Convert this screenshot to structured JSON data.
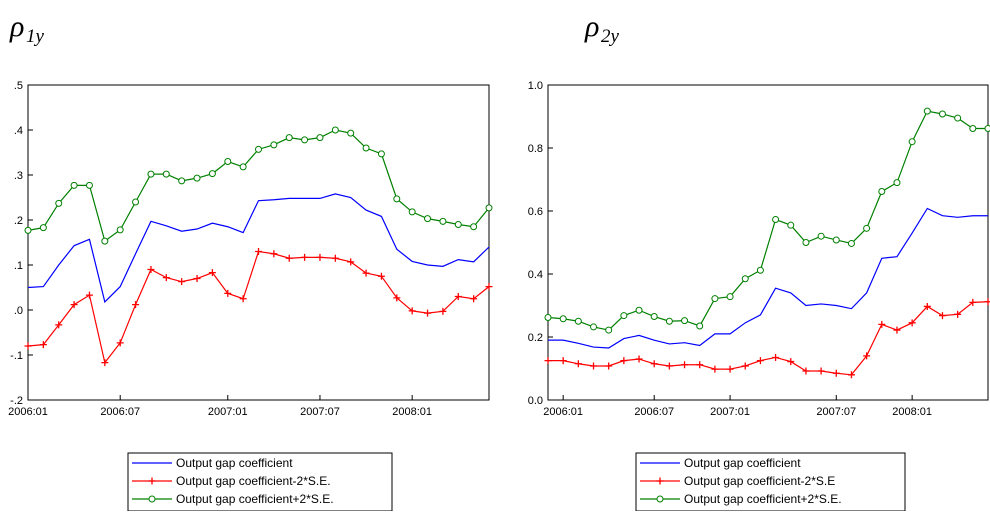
{
  "chart_data": [
    {
      "type": "line",
      "title": "ρ",
      "title_subscript": "1y",
      "categories": [
        "2006:01",
        null,
        null,
        null,
        null,
        null,
        "2006:07",
        null,
        null,
        null,
        null,
        null,
        null,
        "2007:01",
        null,
        null,
        null,
        null,
        null,
        "2007:07",
        null,
        null,
        null,
        null,
        null,
        "2008:01",
        null,
        null,
        null,
        null,
        null
      ],
      "ylim": [
        -0.2,
        0.5
      ],
      "yticks": [
        {
          "value": -0.2,
          "label": "-.2"
        },
        {
          "value": -0.1,
          "label": "-.1"
        },
        {
          "value": 0,
          "label": ".0"
        },
        {
          "value": 0.1,
          "label": ".1"
        },
        {
          "value": 0.2,
          "label": ".2"
        },
        {
          "value": 0.3,
          "label": ".3"
        },
        {
          "value": 0.4,
          "label": ".4"
        },
        {
          "value": 0.5,
          "label": ".5"
        }
      ],
      "series": [
        {
          "name": "Output gap coefficient",
          "color": "#0000ff",
          "marker": null,
          "values": [
            0.05,
            0.052,
            0.1,
            0.143,
            0.157,
            0.018,
            0.052,
            0.125,
            0.197,
            0.187,
            0.175,
            0.18,
            0.193,
            0.185,
            0.172,
            0.243,
            0.245,
            0.248,
            0.248,
            0.248,
            0.258,
            0.25,
            0.222,
            0.208,
            0.135,
            0.108,
            0.1,
            0.097,
            0.112,
            0.107,
            0.14
          ]
        },
        {
          "name": "Output gap coefficient-2*S.E.",
          "color": "#ff0000",
          "marker": "plus",
          "values": [
            -0.08,
            -0.077,
            -0.033,
            0.012,
            0.033,
            -0.117,
            -0.073,
            0.012,
            0.09,
            0.072,
            0.063,
            0.07,
            0.083,
            0.037,
            0.025,
            0.13,
            0.125,
            0.115,
            0.117,
            0.117,
            0.115,
            0.107,
            0.082,
            0.075,
            0.027,
            -0.002,
            -0.007,
            -0.003,
            0.03,
            0.025,
            0.052
          ]
        },
        {
          "name": "Output gap coefficient+2*S.E.",
          "color": "#008000",
          "marker": "circle",
          "values": [
            0.177,
            0.183,
            0.237,
            0.277,
            0.277,
            0.153,
            0.178,
            0.24,
            0.302,
            0.302,
            0.287,
            0.293,
            0.303,
            0.33,
            0.318,
            0.357,
            0.367,
            0.383,
            0.378,
            0.383,
            0.4,
            0.393,
            0.36,
            0.347,
            0.247,
            0.218,
            0.203,
            0.197,
            0.19,
            0.185,
            0.227
          ]
        }
      ]
    },
    {
      "type": "line",
      "title": "ρ",
      "title_subscript": "2y",
      "categories": [
        null,
        "2006:01",
        null,
        null,
        null,
        null,
        null,
        "2006:07",
        null,
        null,
        null,
        null,
        "2007:01",
        null,
        null,
        null,
        null,
        null,
        null,
        "2007:07",
        null,
        null,
        null,
        null,
        "2008:01",
        null,
        null,
        null,
        null,
        null
      ],
      "ylim": [
        0,
        1
      ],
      "yticks": [
        {
          "value": 0,
          "label": "0.0"
        },
        0.2,
        0.4,
        0.6,
        0.8,
        {
          "value": 1,
          "label": "1.0"
        }
      ],
      "series": [
        {
          "name": "Output gap coefficient",
          "color": "#0000ff",
          "marker": null,
          "values": [
            0.19,
            0.19,
            0.18,
            0.168,
            0.165,
            0.195,
            0.205,
            0.19,
            0.178,
            0.182,
            0.173,
            0.21,
            0.21,
            0.245,
            0.27,
            0.355,
            0.34,
            0.3,
            0.305,
            0.3,
            0.29,
            0.34,
            0.45,
            0.455,
            0.53,
            0.608,
            0.585,
            0.58,
            0.585,
            0.585
          ]
        },
        {
          "name": "Output gap coefficient-2*S.E",
          "color": "#ff0000",
          "marker": "plus",
          "values": [
            0.125,
            0.125,
            0.115,
            0.108,
            0.108,
            0.125,
            0.13,
            0.115,
            0.108,
            0.112,
            0.112,
            0.098,
            0.098,
            0.108,
            0.125,
            0.135,
            0.122,
            0.092,
            0.092,
            0.085,
            0.08,
            0.14,
            0.24,
            0.222,
            0.245,
            0.297,
            0.268,
            0.272,
            0.31,
            0.312
          ]
        },
        {
          "name": "Output gap coefficient+2*S.E.",
          "color": "#008000",
          "marker": "circle",
          "values": [
            0.262,
            0.258,
            0.25,
            0.232,
            0.222,
            0.268,
            0.285,
            0.265,
            0.25,
            0.252,
            0.235,
            0.322,
            0.328,
            0.385,
            0.412,
            0.573,
            0.555,
            0.5,
            0.52,
            0.508,
            0.497,
            0.545,
            0.662,
            0.69,
            0.82,
            0.917,
            0.908,
            0.895,
            0.862,
            0.862
          ]
        }
      ]
    }
  ]
}
